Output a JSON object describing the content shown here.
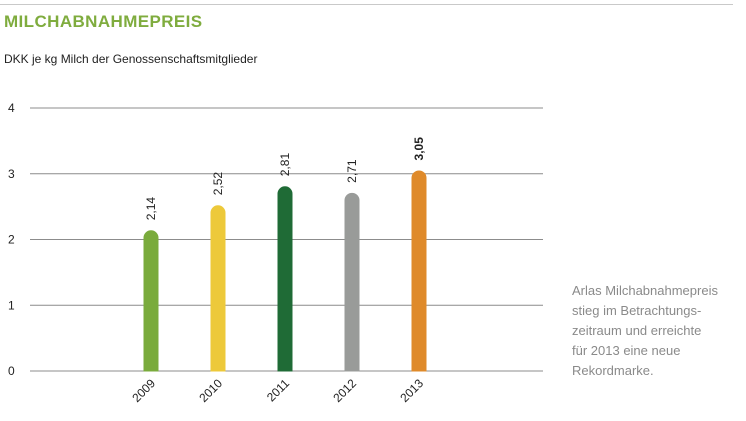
{
  "header": {
    "title": "MILCHABNAHMEPREIS",
    "subtitle": "DKK je kg Milch der Genossenschaftsmitglieder"
  },
  "note": {
    "lines": [
      "Arlas Milchabnahmepreis",
      "stieg im Betrachtungs-",
      "zeitraum und erreichte",
      "für 2013 eine neue",
      "Rekordmarke."
    ]
  },
  "colors": {
    "title": "#7fac3e",
    "grid": "#8c8c8c",
    "note": "#8a8a8a"
  },
  "chart_data": {
    "type": "bar",
    "title": "MILCHABNAHMEPREIS",
    "subtitle": "DKK je kg Milch der Genossenschaftsmitglieder",
    "xlabel": "",
    "ylabel": "",
    "ylim": [
      0,
      4
    ],
    "yticks": [
      "0",
      "1",
      "2",
      "3",
      "4"
    ],
    "grid": true,
    "categories": [
      "2009",
      "2010",
      "2011",
      "2012",
      "2013"
    ],
    "values": [
      2.14,
      2.52,
      2.81,
      2.71,
      3.05
    ],
    "value_labels": [
      "2,14",
      "2,52",
      "2,81",
      "2,71",
      "3,05"
    ],
    "highlight": "2013",
    "bar_colors": [
      "#7aab3c",
      "#edc93a",
      "#1f6b36",
      "#999b99",
      "#df8a2a"
    ]
  }
}
